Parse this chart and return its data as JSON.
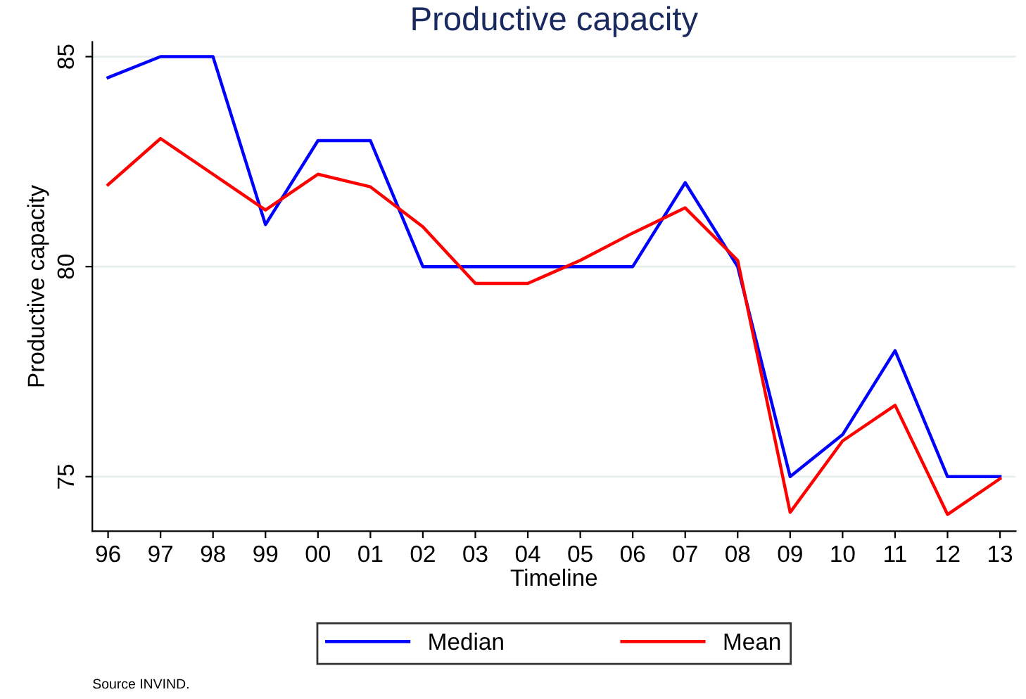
{
  "chart_data": {
    "type": "line",
    "title": "Productive capacity",
    "xlabel": "Timeline",
    "ylabel": "Productive capacity",
    "categories": [
      "96",
      "97",
      "98",
      "99",
      "00",
      "01",
      "02",
      "03",
      "04",
      "05",
      "06",
      "07",
      "08",
      "09",
      "10",
      "11",
      "12",
      "13"
    ],
    "series": [
      {
        "name": "Median",
        "color": "#0000ff",
        "values": [
          84.5,
          85,
          85,
          81,
          83,
          83,
          80,
          80,
          80,
          80,
          80,
          82,
          80,
          75,
          76,
          78,
          75,
          75
        ]
      },
      {
        "name": "Mean",
        "color": "#ff0000",
        "values": [
          81.95,
          83.05,
          82.2,
          81.35,
          82.2,
          81.9,
          80.95,
          79.6,
          79.6,
          80.15,
          80.8,
          81.4,
          80.15,
          74.15,
          75.85,
          76.7,
          74.1,
          74.95
        ]
      }
    ],
    "ylim": [
      73.7,
      85.35
    ],
    "yticks": [
      75,
      80,
      85
    ],
    "grid": "y",
    "legend": "bottom",
    "marker": "none",
    "line_style": "solid",
    "annotations": [
      "Source INVIND."
    ]
  }
}
